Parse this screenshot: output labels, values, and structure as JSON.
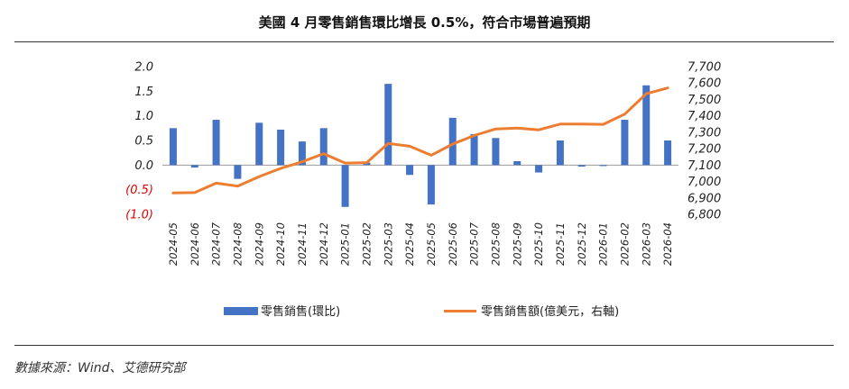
{
  "title": "美國 4 月零售銷售環比增長 0.5%，符合市場普遍預期",
  "source": "數據來源：Wind、艾德研究部",
  "chart_data": {
    "type": "bar+line",
    "title": "美國 4 月零售銷售環比增長 0.5%，符合市場普遍預期",
    "categories": [
      "2024-05",
      "2024-06",
      "2024-07",
      "2024-08",
      "2024-09",
      "2024-10",
      "2024-11",
      "2024-12",
      "2025-01",
      "2025-02",
      "2025-03",
      "2025-04",
      "2025-05",
      "2025-06",
      "2025-07",
      "2025-08",
      "2025-09",
      "2025-10",
      "2025-11",
      "2025-12",
      "2026-01",
      "2026-02",
      "2026-03",
      "2026-04"
    ],
    "series": [
      {
        "name": "零售銷售(環比)",
        "type": "bar",
        "axis": "left",
        "color": "#4472C4",
        "values": [
          0.75,
          -0.05,
          0.92,
          -0.28,
          0.86,
          0.72,
          0.48,
          0.75,
          -0.85,
          0.05,
          1.65,
          -0.2,
          -0.8,
          0.96,
          0.63,
          0.55,
          0.08,
          -0.15,
          0.5,
          -0.03,
          -0.02,
          0.92,
          1.62,
          0.5
        ]
      },
      {
        "name": "零售銷售額(億美元，右軸)",
        "type": "line",
        "axis": "right",
        "color": "#ED7D31",
        "values": [
          6930,
          6932,
          6990,
          6972,
          7030,
          7080,
          7120,
          7170,
          7112,
          7115,
          7232,
          7215,
          7160,
          7228,
          7280,
          7320,
          7325,
          7315,
          7350,
          7350,
          7348,
          7410,
          7535,
          7570
        ]
      }
    ],
    "y_left": {
      "ylim": [
        -1.0,
        2.0
      ],
      "ticks": [
        2.0,
        1.5,
        1.0,
        0.5,
        0.0,
        -0.5,
        -1.0
      ],
      "tick_labels": [
        "2.0",
        "1.5",
        "1.0",
        "0.5",
        "0.0",
        "(0.5)",
        "(1.0)"
      ],
      "negative_color": "#E00000"
    },
    "y_right": {
      "ylim": [
        6800,
        7700
      ],
      "ticks": [
        7700,
        7600,
        7500,
        7400,
        7300,
        7200,
        7100,
        7000,
        6900,
        6800
      ],
      "tick_labels": [
        "7,700",
        "7,600",
        "7,500",
        "7,400",
        "7,300",
        "7,200",
        "7,100",
        "7,000",
        "6,900",
        "6,800"
      ]
    },
    "grid": false,
    "legend": "bottom"
  }
}
